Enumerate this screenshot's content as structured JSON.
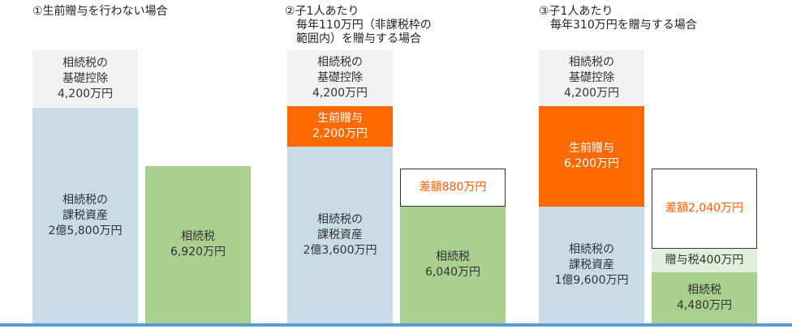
{
  "scenarios": [
    {
      "heading": [
        "①生前贈与を行わない場合"
      ],
      "exemption": [
        "相続税の",
        "基礎控除",
        "4,200万円"
      ],
      "taxable_assets": [
        "相続税の",
        "課税資産",
        "2億5,800万円"
      ],
      "inheritance_tax": [
        "相続税",
        "6,920万円"
      ]
    },
    {
      "heading": [
        "②子1人あたり",
        "毎年110万円（非課税枠の",
        "範囲内）を贈与する場合"
      ],
      "exemption": [
        "相続税の",
        "基礎控除",
        "4,200万円"
      ],
      "gift": [
        "生前贈与",
        "2,200万円"
      ],
      "taxable_assets": [
        "相続税の",
        "課税資産",
        "2億3,600万円"
      ],
      "difference": [
        "差額880万円"
      ],
      "inheritance_tax": [
        "相続税",
        "6,040万円"
      ]
    },
    {
      "heading": [
        "③子1人あたり",
        "毎年310万円を贈与する場合"
      ],
      "exemption": [
        "相続税の",
        "基礎控除",
        "4,200万円"
      ],
      "gift": [
        "生前贈与",
        "6,200万円"
      ],
      "taxable_assets": [
        "相続税の",
        "課税資産",
        "1億9,600万円"
      ],
      "difference": [
        "差額2,040万円"
      ],
      "gift_tax": [
        "贈与税400万円"
      ],
      "inheritance_tax": [
        "相続税",
        "4,480万円"
      ]
    }
  ],
  "colors": {
    "exemption": "#f2f2f2",
    "taxable_assets": "#c9dbe6",
    "gift": "#ff6a00",
    "inheritance_tax": "#a9d08e",
    "gift_tax": "#e2efda",
    "difference_text": "#ff5b00",
    "baseline": "#5b9bd5"
  }
}
